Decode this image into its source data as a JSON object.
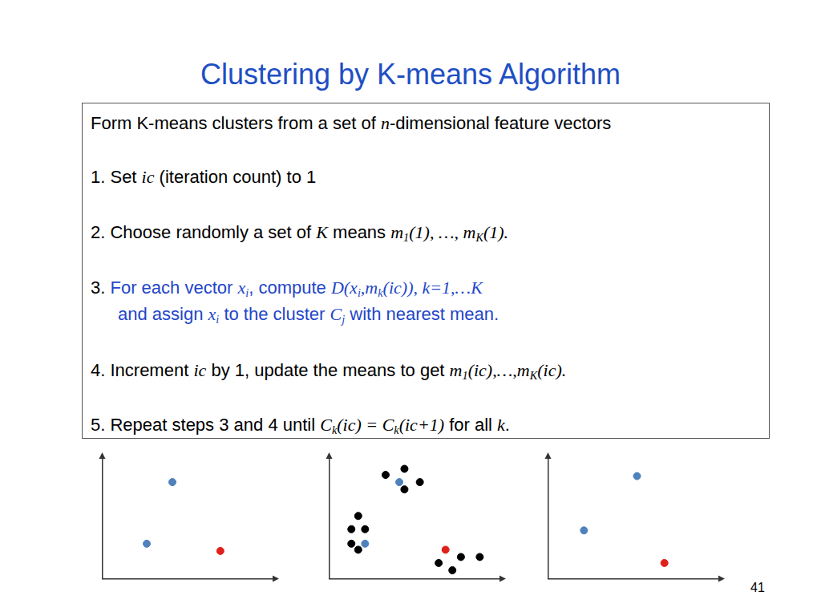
{
  "title": "Clustering by K-means Algorithm",
  "box": {
    "paragraphs": [
      {
        "lines": [
          [
            {
              "text": "Form K-means clusters from a set of "
            },
            {
              "math": "n"
            },
            {
              "text": "-dimensional feature vectors"
            }
          ]
        ]
      },
      {
        "lines": [
          [
            {
              "text": "1. Set "
            },
            {
              "math": "ic"
            },
            {
              "text": " (iteration count) to 1"
            }
          ]
        ]
      },
      {
        "lines": [
          [
            {
              "text": "2. Choose randomly a set of "
            },
            {
              "math": "K"
            },
            {
              "text": " means "
            },
            {
              "math": "m"
            },
            {
              "sub": "1"
            },
            {
              "math": "(1), …, m"
            },
            {
              "sub": "K"
            },
            {
              "math": "(1)."
            }
          ]
        ]
      },
      {
        "lines": [
          [
            {
              "text": "3. "
            },
            {
              "text": "For each vector ",
              "color": "#2346c8"
            },
            {
              "math": "x",
              "color": "#2346c8"
            },
            {
              "sub": "i",
              "color": "#2346c8"
            },
            {
              "text": ", compute ",
              "color": "#2346c8"
            },
            {
              "math": "D(x",
              "color": "#2346c8"
            },
            {
              "sub": "i",
              "color": "#2346c8"
            },
            {
              "math": ",m",
              "color": "#2346c8"
            },
            {
              "sub": "k",
              "color": "#2346c8"
            },
            {
              "math": "(ic)), k=1,…K",
              "color": "#2346c8"
            }
          ],
          [
            {
              "text": "and assign ",
              "color": "#2346c8"
            },
            {
              "math": "x",
              "color": "#2346c8"
            },
            {
              "sub": "i",
              "color": "#2346c8"
            },
            {
              "text": " to the cluster ",
              "color": "#2346c8"
            },
            {
              "math": "C",
              "color": "#2346c8"
            },
            {
              "sub": "j",
              "color": "#2346c8"
            },
            {
              "text": " with nearest mean.",
              "color": "#2346c8"
            }
          ]
        ]
      },
      {
        "lines": [
          [
            {
              "text": "4.  Increment "
            },
            {
              "math": "ic"
            },
            {
              "text": " by 1, update the means to get "
            },
            {
              "math": "m"
            },
            {
              "sub": "1"
            },
            {
              "math": "(ic),…,m"
            },
            {
              "sub": "K"
            },
            {
              "math": "(ic)."
            }
          ]
        ]
      },
      {
        "lines": [
          [
            {
              "text": "5. Repeat steps 3 and 4 until "
            },
            {
              "math": "C"
            },
            {
              "sub": "k"
            },
            {
              "math": "(ic) = C"
            },
            {
              "sub": "k"
            },
            {
              "math": "(ic+1)"
            },
            {
              "text": " for all "
            },
            {
              "math": "k"
            },
            {
              "text": "."
            }
          ]
        ]
      }
    ]
  },
  "page_number": "41",
  "chart_data": [
    {
      "type": "scatter",
      "xlim": [
        0,
        10
      ],
      "ylim": [
        0,
        10
      ],
      "grid": false,
      "tick_labels": false,
      "series": [
        {
          "color": "#4f81bd",
          "marker": "circle",
          "x": [
            4.1,
            2.6
          ],
          "values": [
            8.0,
            2.9
          ]
        },
        {
          "color": "#e0201b",
          "marker": "circle",
          "x": [
            6.9
          ],
          "values": [
            2.3
          ]
        }
      ]
    },
    {
      "type": "scatter",
      "xlim": [
        0,
        10
      ],
      "ylim": [
        0,
        10
      ],
      "grid": false,
      "tick_labels": false,
      "series": [
        {
          "color": "#000000",
          "marker": "circle",
          "x": [
            3.3,
            4.4,
            5.3,
            4.4,
            1.7,
            1.3,
            2.1,
            1.3,
            1.7,
            7.7,
            8.8,
            6.4,
            7.2
          ],
          "values": [
            8.6,
            9.1,
            8.0,
            7.4,
            5.2,
            4.1,
            4.1,
            2.9,
            2.4,
            1.8,
            1.8,
            1.3,
            0.7
          ]
        },
        {
          "color": "#4f81bd",
          "marker": "circle",
          "x": [
            4.1,
            2.1
          ],
          "values": [
            8.0,
            2.9
          ]
        },
        {
          "color": "#e0201b",
          "marker": "circle",
          "x": [
            6.8
          ],
          "values": [
            2.4
          ]
        }
      ]
    },
    {
      "type": "scatter",
      "xlim": [
        0,
        10
      ],
      "ylim": [
        0,
        10
      ],
      "grid": false,
      "tick_labels": false,
      "series": [
        {
          "color": "#4f81bd",
          "marker": "circle",
          "x": [
            5.2,
            2.1
          ],
          "values": [
            8.5,
            4.0
          ]
        },
        {
          "color": "#e0201b",
          "marker": "circle",
          "x": [
            6.8
          ],
          "values": [
            1.3
          ]
        }
      ]
    }
  ]
}
